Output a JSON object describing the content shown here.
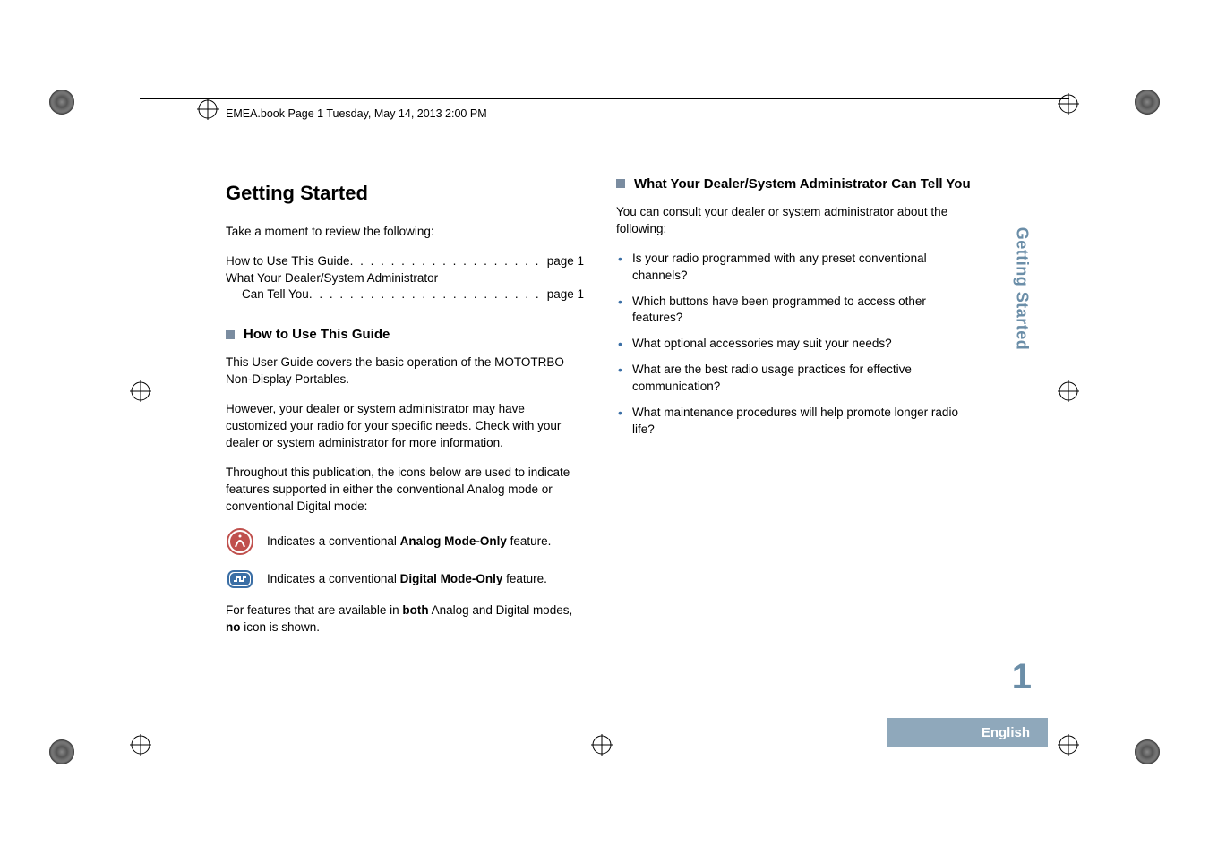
{
  "header": {
    "running_head": "EMEA.book  Page 1  Tuesday, May 14, 2013  2:00 PM"
  },
  "left": {
    "dashes": "■ ■ ■ ■ ■ ■ ■ ■ ■ ■ ■ ■ ■ ■ ■ ■ ■ ■ ■ ■ ■ ■ ■ ■ ■ ■ ■ ■ ■ ■ ■ ■ ■ ■ ■ ■ ■ ■ ■ ■",
    "chapter_title": "Getting Started",
    "intro": "Take a moment to review the following:",
    "toc": [
      {
        "label": "How to Use This Guide",
        "page": "page 1",
        "indent": false,
        "dots": ". . . . . . . . . . . . . . . . . . . . ."
      },
      {
        "label": "What Your Dealer/System Administrator",
        "page": "",
        "indent": false,
        "dots": ""
      },
      {
        "label": "Can Tell You",
        "page": "page 1",
        "indent": true,
        "dots": ". . . . . . . . . . . . . . . . . . . . . . . . . . ."
      }
    ],
    "section1_title": "How to Use This Guide",
    "p1": "This User Guide covers the basic operation of the MOTOTRBO Non-Display Portables.",
    "p2": "However, your dealer or system administrator may have customized your radio for your specific needs. Check with your dealer or system administrator for more information.",
    "p3": "Throughout this publication, the icons below are used to indicate features supported in either the conventional Analog mode or conventional Digital mode:",
    "analog_pre": "Indicates a conventional ",
    "analog_bold": "Analog Mode-Only",
    "analog_post": " feature.",
    "digital_pre": "Indicates a conventional ",
    "digital_bold": "Digital Mode-Only",
    "digital_post": " feature.",
    "p4_pre": "For features that are available in ",
    "p4_b1": "both",
    "p4_mid": " Analog and Digital modes, ",
    "p4_b2": "no",
    "p4_post": " icon is shown."
  },
  "right": {
    "section2_title": "What Your Dealer/System Administrator Can Tell You",
    "intro2": "You can consult your dealer or system administrator about the following:",
    "bullets": [
      "Is your radio programmed with any preset conventional channels?",
      "Which buttons have been programmed to access other features?",
      "What optional accessories may suit your needs?",
      "What are the best radio usage practices for effective communication?",
      "What maintenance procedures will help promote longer radio life?"
    ]
  },
  "side": {
    "tab_text": "Getting Started",
    "page_number": "1",
    "language": "English"
  },
  "style": {
    "accent_color": "#3a6ea5",
    "side_text_color": "#6b8ea8",
    "lang_tab_bg": "#8fa8bb",
    "body_font_size_pt": 10,
    "title_font_size_pt": 16,
    "section_square_color": "#7a8ca0"
  }
}
